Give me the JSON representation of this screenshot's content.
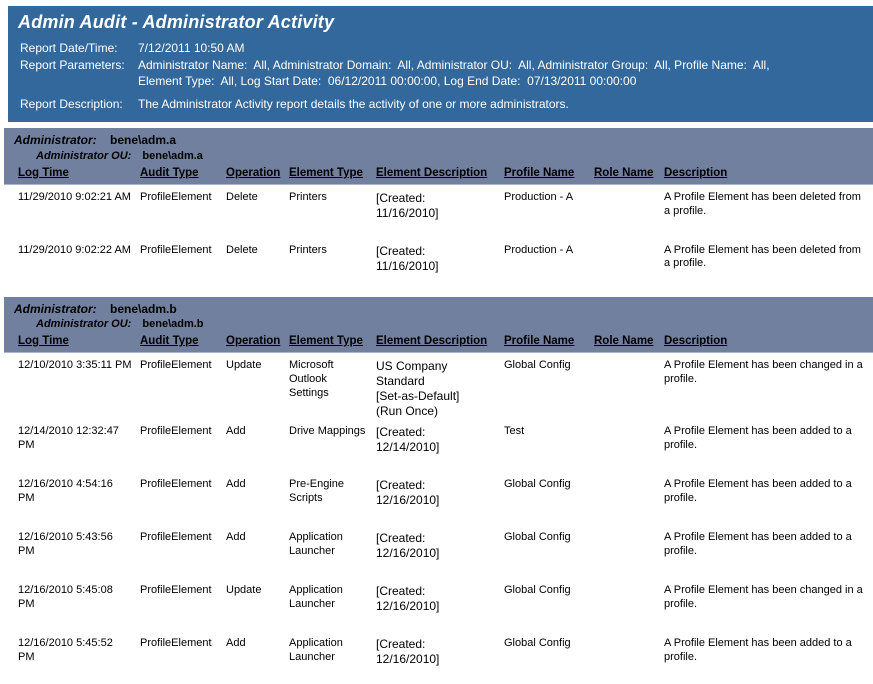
{
  "colors": {
    "header_blue": "#33689C",
    "section_band": "#71809F",
    "band_separator": "#A9B2CE",
    "header_text": "#FFFFFF",
    "body_text": "#000000"
  },
  "report": {
    "title": "Admin Audit - Administrator Activity",
    "date_label": "Report Date/Time:",
    "date_value": "7/12/2011 10:50 AM",
    "parameters_label": "Report Parameters:",
    "parameters_value": "Administrator Name:  All, Administrator Domain:  All, Administrator OU:  All, Administrator Group:  All, Profile Name:  All,\nElement Type:  All, Log Start Date:  06/12/2011 00:00:00, Log End Date:  07/13/2011 00:00:00",
    "description_label": "Report Description:",
    "description_value": "The Administrator Activity report details the activity of one or more administrators."
  },
  "columns": [
    "Log Time",
    "Audit Type",
    "Operation",
    "Element Type",
    "Element Description",
    "Profile Name",
    "Role Name",
    "Description"
  ],
  "sections": [
    {
      "administrator_label": "Administrator:",
      "administrator": "bene\\adm.a",
      "ou_label": "Administrator OU:",
      "ou": "bene\\adm.a",
      "rows": [
        [
          "11/29/2010 9:02:21 AM",
          "ProfileElement",
          "Delete",
          "Printers",
          "[Created:\n11/16/2010]",
          "Production - A",
          "",
          "A Profile Element has been deleted from\na profile."
        ],
        [
          "11/29/2010 9:02:22 AM",
          "ProfileElement",
          "Delete",
          "Printers",
          "[Created:\n11/16/2010]",
          "Production - A",
          "",
          "A Profile Element has been deleted from\na profile."
        ]
      ]
    },
    {
      "administrator_label": "Administrator:",
      "administrator": "bene\\adm.b",
      "ou_label": "Administrator OU:",
      "ou": "bene\\adm.b",
      "rows": [
        [
          "12/10/2010 3:35:11 PM",
          "ProfileElement",
          "Update",
          "Microsoft\nOutlook Settings",
          "US Company\nStandard\n[Set-as-Default]\n(Run Once)",
          "Global Config",
          "",
          "A Profile Element has been changed in a\nprofile."
        ],
        [
          "12/14/2010 12:32:47\nPM",
          "ProfileElement",
          "Add",
          "Drive Mappings",
          "[Created:\n12/14/2010]",
          "Test",
          "",
          "A Profile Element has been added to a\nprofile."
        ],
        [
          "12/16/2010 4:54:16 PM",
          "ProfileElement",
          "Add",
          "Pre-Engine\nScripts",
          "[Created:\n12/16/2010]",
          "Global Config",
          "",
          "A Profile Element has been added to a\nprofile."
        ],
        [
          "12/16/2010 5:43:56 PM",
          "ProfileElement",
          "Add",
          "Application\nLauncher",
          "[Created:\n12/16/2010]",
          "Global Config",
          "",
          "A Profile Element has been added to a\nprofile."
        ],
        [
          "12/16/2010 5:45:08 PM",
          "ProfileElement",
          "Update",
          "Application\nLauncher",
          "[Created:\n12/16/2010]",
          "Global Config",
          "",
          "A Profile Element has been changed in a\nprofile."
        ],
        [
          "12/16/2010 5:45:52 PM",
          "ProfileElement",
          "Add",
          "Application\nLauncher",
          "[Created:\n12/16/2010]",
          "Global Config",
          "",
          "A Profile Element has been added to a\nprofile."
        ]
      ]
    }
  ]
}
